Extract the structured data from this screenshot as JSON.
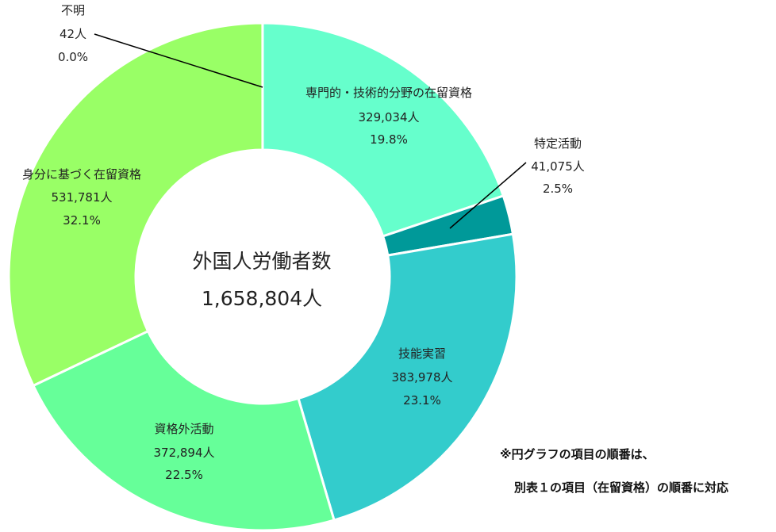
{
  "chart_data": {
    "type": "pie",
    "center": {
      "title": "外国人労働者数",
      "total": "1,658,804人"
    },
    "slices": [
      {
        "name": "専門的・技術的分野の在留資格",
        "count": "329,034人",
        "value": 329034,
        "percent": "19.8%",
        "color": "#66FFCC"
      },
      {
        "name": "特定活動",
        "count": "41,075人",
        "value": 41075,
        "percent": "2.5%",
        "color": "#009999"
      },
      {
        "name": "技能実習",
        "count": "383,978人",
        "value": 383978,
        "percent": "23.1%",
        "color": "#33CCCC"
      },
      {
        "name": "資格外活動",
        "count": "372,894人",
        "value": 372894,
        "percent": "22.5%",
        "color": "#66FF99"
      },
      {
        "name": "身分に基づく在留資格",
        "count": "531,781人",
        "value": 531781,
        "percent": "32.1%",
        "color": "#99FF66"
      },
      {
        "name": "不明",
        "count": "42人",
        "value": 42,
        "percent": "0.0%",
        "color": "#99FF66"
      }
    ]
  },
  "note": {
    "line1": "※円グラフの項目の順番は、",
    "line2": "別表１の項目（在留資格）の順番に対応"
  }
}
